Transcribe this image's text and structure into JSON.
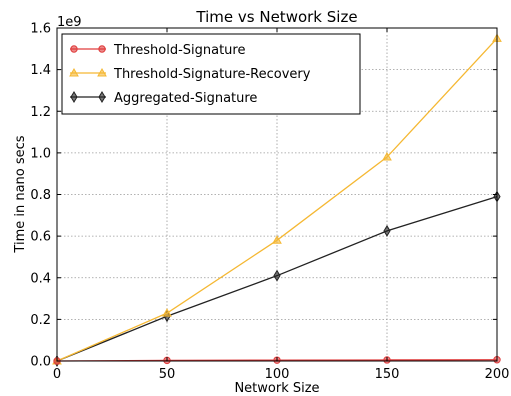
{
  "chart_data": {
    "type": "line",
    "title": "Time vs Network Size",
    "xlabel": "Network Size",
    "ylabel": "Time in nano secs",
    "y_offset_label": "1e9",
    "x": [
      0,
      50,
      100,
      150,
      200
    ],
    "xlim": [
      0,
      200
    ],
    "ylim": [
      0,
      1.6
    ],
    "y_unit_multiplier": 1000000000,
    "xticks": [
      0,
      50,
      100,
      150,
      200
    ],
    "xtick_labels": [
      "0",
      "50",
      "100",
      "150",
      "200"
    ],
    "yticks": [
      0.0,
      0.2,
      0.4,
      0.6,
      0.8,
      1.0,
      1.2,
      1.4,
      1.6
    ],
    "ytick_labels": [
      "0.0",
      "0.2",
      "0.4",
      "0.6",
      "0.8",
      "1.0",
      "1.2",
      "1.4",
      "1.6"
    ],
    "grid": true,
    "legend_position": "top-left",
    "series": [
      {
        "name": "Threshold-Signature",
        "values": [
          0.0,
          0.003,
          0.004,
          0.005,
          0.006
        ],
        "color": "#e03c3c",
        "marker": "circle"
      },
      {
        "name": "Threshold-Signature-Recovery",
        "values": [
          0.0,
          0.23,
          0.58,
          0.98,
          1.55
        ],
        "color": "#f5b833",
        "marker": "triangle"
      },
      {
        "name": "Aggregated-Signature",
        "values": [
          0.0,
          0.215,
          0.41,
          0.625,
          0.79
        ],
        "color": "#222222",
        "marker": "diamond"
      }
    ]
  }
}
